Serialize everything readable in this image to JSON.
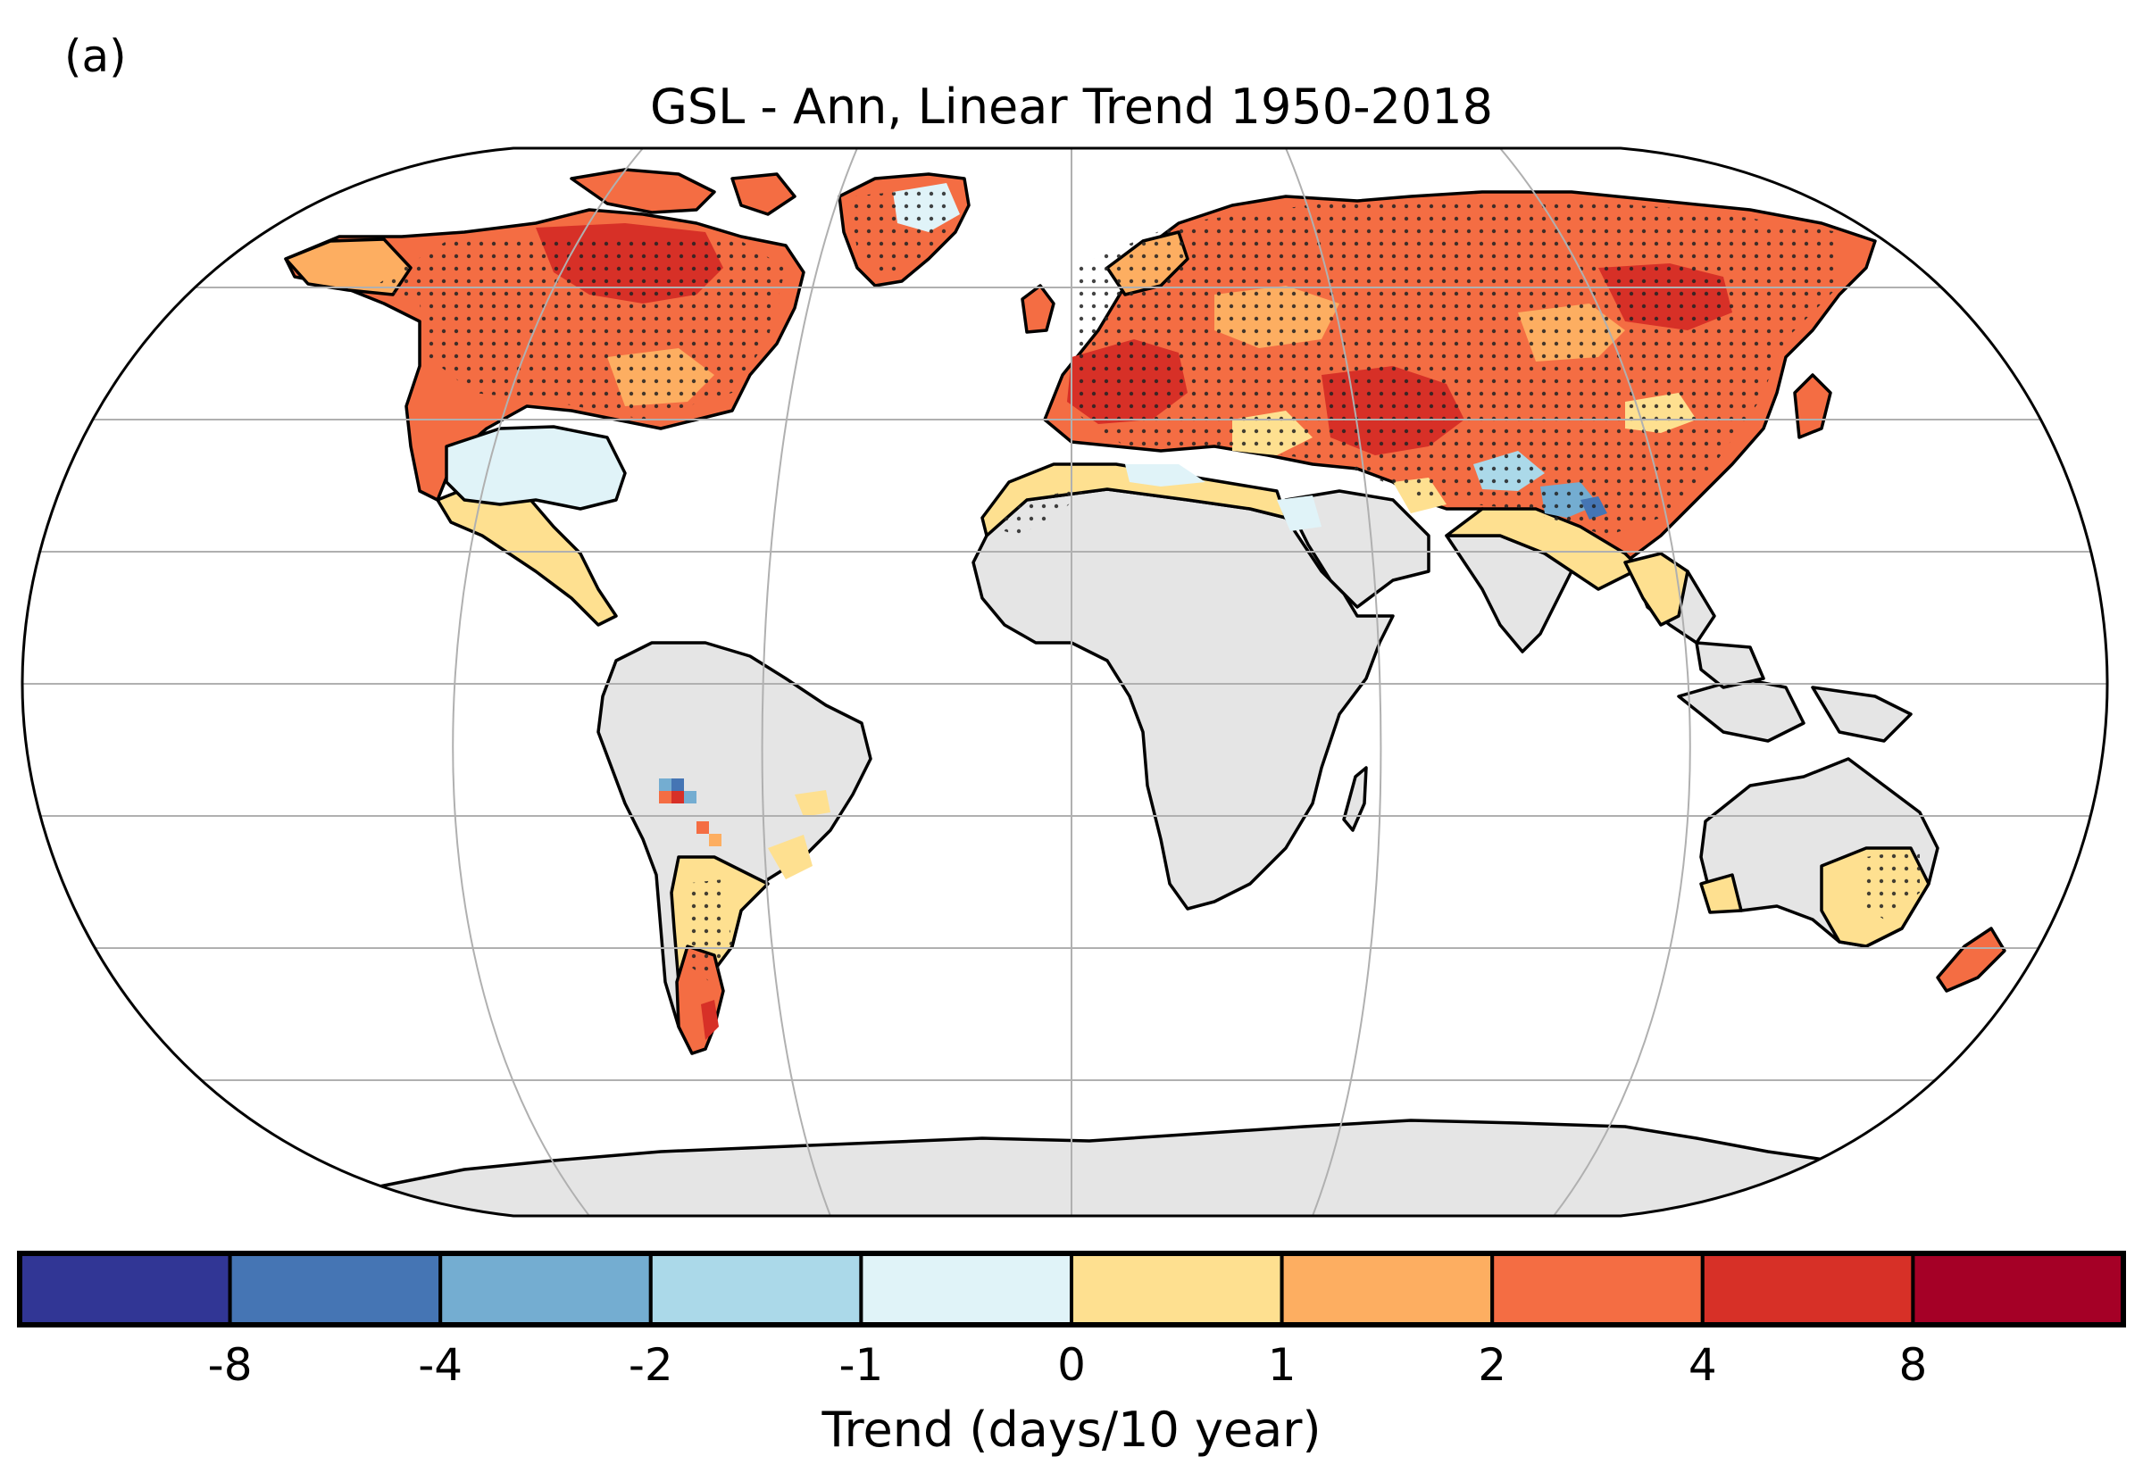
{
  "panel_label": "(a)",
  "title": "GSL - Ann, Linear Trend 1950-2018",
  "colorbar": {
    "label": "Trend (days/10 year)",
    "ticks": [
      "-8",
      "-4",
      "-2",
      "-1",
      "0",
      "1",
      "2",
      "4",
      "8"
    ],
    "bins": [
      {
        "range": "< -8",
        "color": "#313695"
      },
      {
        "range": "-8 to -4",
        "color": "#4575b4"
      },
      {
        "range": "-4 to -2",
        "color": "#74add1"
      },
      {
        "range": "-2 to -1",
        "color": "#abd9e9"
      },
      {
        "range": "-1 to 0",
        "color": "#e0f3f8"
      },
      {
        "range": "0 to 1",
        "color": "#fee090"
      },
      {
        "range": "1 to 2",
        "color": "#fdae61"
      },
      {
        "range": "2 to 4",
        "color": "#f46d43"
      },
      {
        "range": "4 to 8",
        "color": "#d73027"
      },
      {
        "range": "> 8",
        "color": "#a50026"
      }
    ]
  },
  "map": {
    "projection": "Robinson",
    "no_data_color": "#e5e5e5",
    "ocean_color": "#ffffff",
    "gridline_color": "#b0b0b0",
    "stippling": "significant trend"
  }
}
